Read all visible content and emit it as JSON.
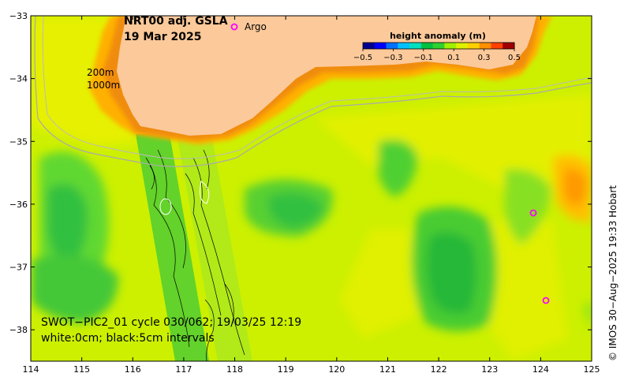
{
  "title": {
    "line1": "NRT00 adj. GSLA",
    "line2": "19 Mar 2025"
  },
  "legend": {
    "argo_label": "Argo",
    "argo_color": "#ff00ff"
  },
  "isobaths": {
    "label_200": "200m",
    "label_1000": "1000m"
  },
  "colorbar": {
    "title": "height anomaly (m)",
    "tick_labels": [
      "−0.5",
      "−0.3",
      "−0.1",
      "0.1",
      "0.3",
      "0.5"
    ],
    "tick_values": [
      -0.5,
      -0.3,
      -0.1,
      0.1,
      0.3,
      0.5
    ],
    "range": [
      -0.5,
      0.5
    ],
    "colors": [
      "#000090",
      "#0000ff",
      "#0070ff",
      "#00c0ff",
      "#00e0c0",
      "#00c040",
      "#30d030",
      "#a0f000",
      "#e0f000",
      "#ffd000",
      "#ff9000",
      "#ff4000",
      "#a00000"
    ]
  },
  "swath": {
    "line1": "SWOT−PIC2_01 cycle 030/062; 19/03/25 12:19",
    "line2": "white:0cm; black:5cm intervals"
  },
  "credit": "© IMOS 30−Aug−2025 19:33 Hobart",
  "colors": {
    "land": "#fcc99a",
    "ocean_mid": "#ccf000",
    "ocean_low": "#38cc38",
    "ocean_high": "#ffb000"
  },
  "x_axis": {
    "ticks": [
      114,
      115,
      116,
      117,
      118,
      119,
      120,
      121,
      122,
      123,
      124,
      125
    ],
    "labels": [
      "114",
      "115",
      "116",
      "117",
      "118",
      "119",
      "120",
      "121",
      "122",
      "123",
      "124",
      "125"
    ],
    "range": [
      114,
      125
    ]
  },
  "y_axis": {
    "ticks": [
      -33,
      -34,
      -35,
      -36,
      -37,
      -38
    ],
    "labels": [
      "−33",
      "−34",
      "−35",
      "−36",
      "−37",
      "−38"
    ],
    "range": [
      -38.5,
      -33
    ]
  }
}
